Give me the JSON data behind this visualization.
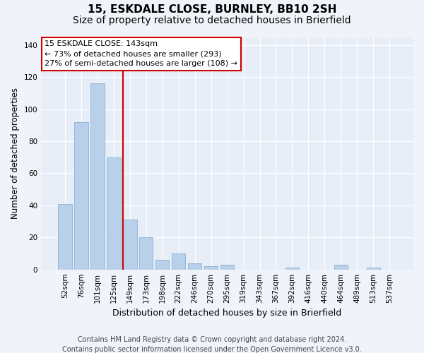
{
  "title": "15, ESKDALE CLOSE, BURNLEY, BB10 2SH",
  "subtitle": "Size of property relative to detached houses in Brierfield",
  "xlabel": "Distribution of detached houses by size in Brierfield",
  "ylabel": "Number of detached properties",
  "categories": [
    "52sqm",
    "76sqm",
    "101sqm",
    "125sqm",
    "149sqm",
    "173sqm",
    "198sqm",
    "222sqm",
    "246sqm",
    "270sqm",
    "295sqm",
    "319sqm",
    "343sqm",
    "367sqm",
    "392sqm",
    "416sqm",
    "440sqm",
    "464sqm",
    "489sqm",
    "513sqm",
    "537sqm"
  ],
  "values": [
    41,
    92,
    116,
    70,
    31,
    20,
    6,
    10,
    4,
    2,
    3,
    0,
    0,
    0,
    1,
    0,
    0,
    3,
    0,
    1,
    0
  ],
  "bar_color": "#b8d0ea",
  "bar_edge_color": "#8ab0d4",
  "reference_line_x": 3.57,
  "reference_line_color": "#cc0000",
  "annotation_text": "15 ESKDALE CLOSE: 143sqm\n← 73% of detached houses are smaller (293)\n27% of semi-detached houses are larger (108) →",
  "annotation_box_color": "#ffffff",
  "annotation_box_edge_color": "#cc0000",
  "ylim": [
    0,
    145
  ],
  "yticks": [
    0,
    20,
    40,
    60,
    80,
    100,
    120,
    140
  ],
  "footer_text": "Contains HM Land Registry data © Crown copyright and database right 2024.\nContains public sector information licensed under the Open Government Licence v3.0.",
  "bg_color": "#f0f4fa",
  "plot_bg_color": "#e8eef8",
  "grid_color": "#ffffff",
  "title_fontsize": 11,
  "subtitle_fontsize": 10,
  "xlabel_fontsize": 9,
  "ylabel_fontsize": 8.5,
  "tick_fontsize": 7.5,
  "footer_fontsize": 7,
  "annotation_fontsize": 8
}
